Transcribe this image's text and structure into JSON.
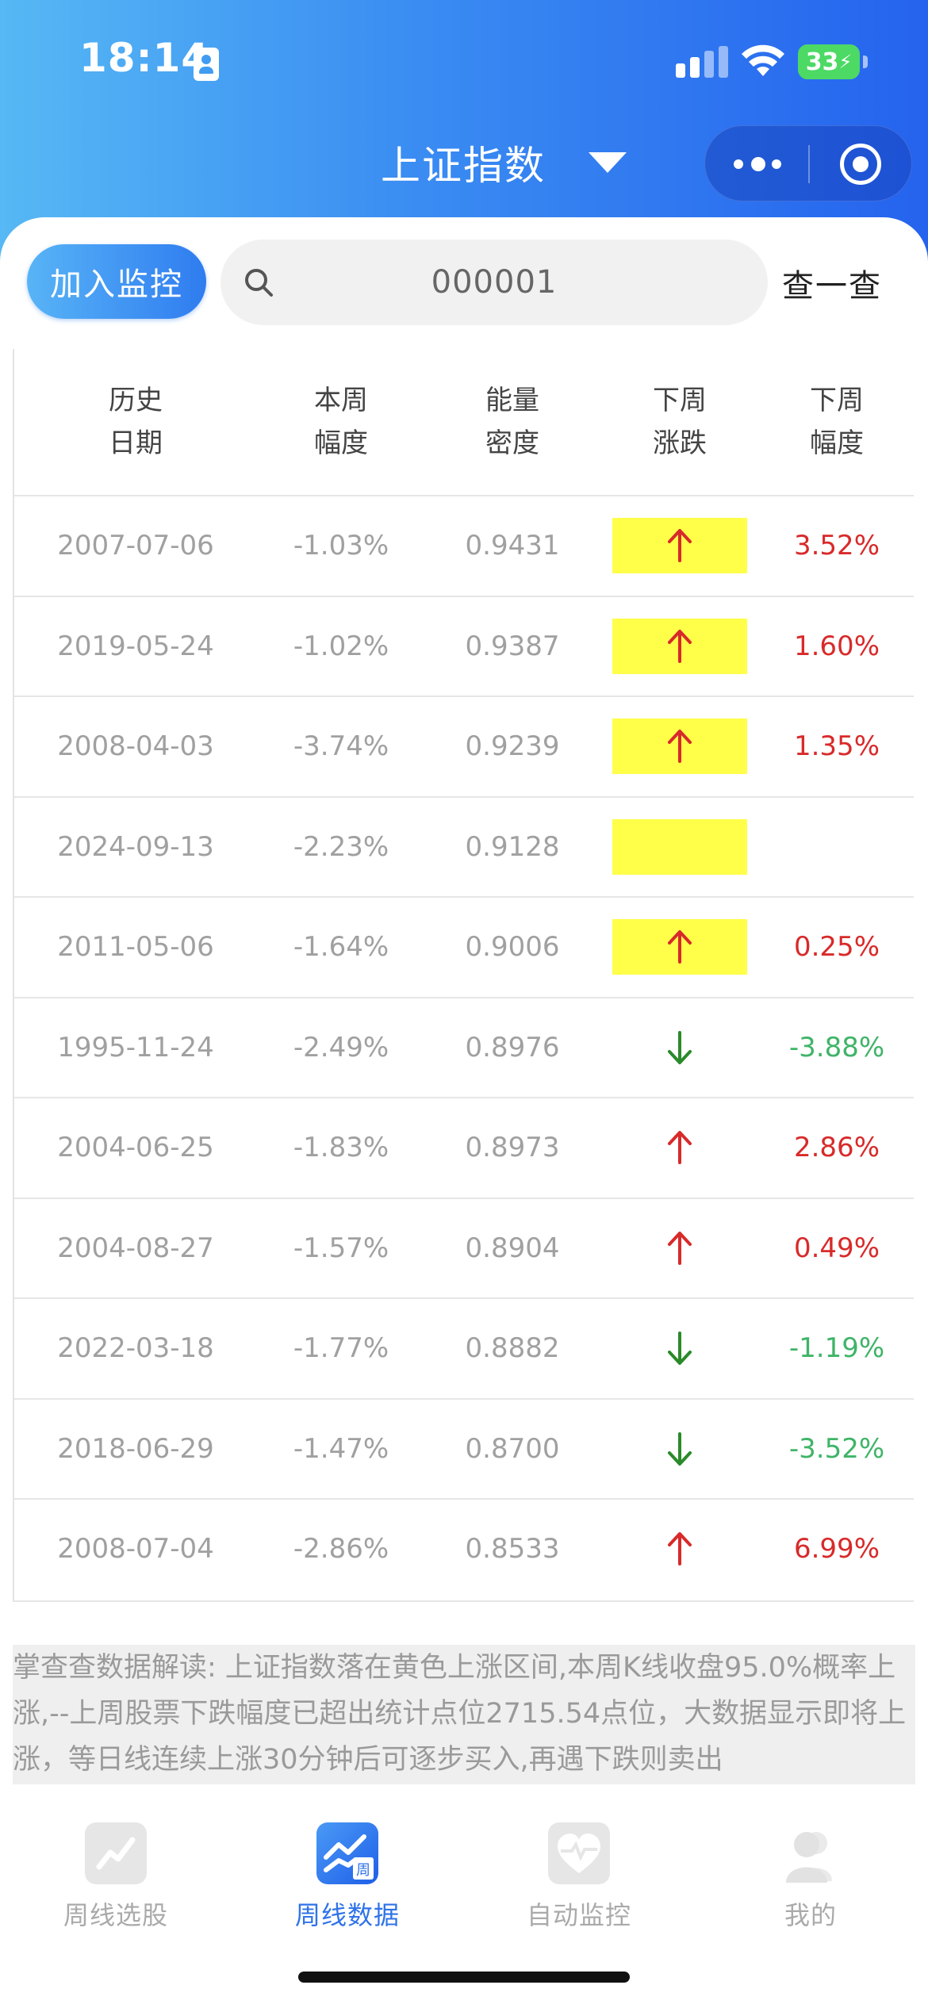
{
  "status_bar": {
    "time": "18:14",
    "battery": "33"
  },
  "nav": {
    "title": "上证指数"
  },
  "search": {
    "join_label": "加入监控",
    "code_value": "000001",
    "query_label": "查一查"
  },
  "table": {
    "headers": [
      [
        "历史",
        "日期"
      ],
      [
        "本周",
        "幅度"
      ],
      [
        "能量",
        "密度"
      ],
      [
        "下周",
        "涨跌"
      ],
      [
        "下周",
        "幅度"
      ]
    ],
    "rows": [
      {
        "date": "2007-07-06",
        "range": "-1.03%",
        "energy": "0.9431",
        "highlight": true,
        "direction": "up",
        "next": "3.52%"
      },
      {
        "date": "2019-05-24",
        "range": "-1.02%",
        "energy": "0.9387",
        "highlight": true,
        "direction": "up",
        "next": "1.60%"
      },
      {
        "date": "2008-04-03",
        "range": "-3.74%",
        "energy": "0.9239",
        "highlight": true,
        "direction": "up",
        "next": "1.35%"
      },
      {
        "date": "2024-09-13",
        "range": "-2.23%",
        "energy": "0.9128",
        "highlight": true,
        "direction": "",
        "next": ""
      },
      {
        "date": "2011-05-06",
        "range": "-1.64%",
        "energy": "0.9006",
        "highlight": true,
        "direction": "up",
        "next": "0.25%"
      },
      {
        "date": "1995-11-24",
        "range": "-2.49%",
        "energy": "0.8976",
        "highlight": false,
        "direction": "down",
        "next": "-3.88%"
      },
      {
        "date": "2004-06-25",
        "range": "-1.83%",
        "energy": "0.8973",
        "highlight": false,
        "direction": "up",
        "next": "2.86%"
      },
      {
        "date": "2004-08-27",
        "range": "-1.57%",
        "energy": "0.8904",
        "highlight": false,
        "direction": "up",
        "next": "0.49%"
      },
      {
        "date": "2022-03-18",
        "range": "-1.77%",
        "energy": "0.8882",
        "highlight": false,
        "direction": "down",
        "next": "-1.19%"
      },
      {
        "date": "2018-06-29",
        "range": "-1.47%",
        "energy": "0.8700",
        "highlight": false,
        "direction": "down",
        "next": "-3.52%"
      },
      {
        "date": "2008-07-04",
        "range": "-2.86%",
        "energy": "0.8533",
        "highlight": false,
        "direction": "up",
        "next": "6.99%"
      }
    ]
  },
  "interpretation": "掌查查数据解读: 上证指数落在黄色上涨区间,本周K线收盘95.0%概率上涨,--上周股票下跌幅度已超出统计点位2715.54点位，大数据显示即将上涨，等日线连续上涨30分钟后可逐步买入,再遇下跌则卖出",
  "tabbar": {
    "tabs": [
      {
        "label": "周线选股",
        "icon": "line-chart-icon",
        "active": false
      },
      {
        "label": "周线数据",
        "icon": "weekly-data-icon",
        "active": true
      },
      {
        "label": "自动监控",
        "icon": "heart-monitor-icon",
        "active": false
      },
      {
        "label": "我的",
        "icon": "user-icon",
        "active": false
      }
    ]
  },
  "colors": {
    "up": "#d82a2a",
    "down": "#3fb468",
    "highlight": "#ffff4a",
    "accent": "#2f73e8"
  }
}
